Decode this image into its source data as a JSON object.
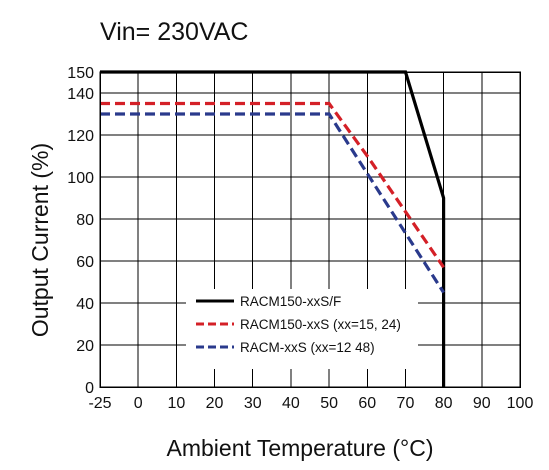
{
  "chart_data": {
    "type": "line",
    "title": "Vin= 230VAC",
    "xlabel": "Ambient Temperature (°C)",
    "ylabel": "Output Current (%)",
    "xlim": [
      -25,
      100
    ],
    "ylim": [
      0,
      150
    ],
    "x_ticks": [
      "-25",
      "0",
      "10",
      "20",
      "30",
      "40",
      "50",
      "60",
      "70",
      "80",
      "90",
      "100"
    ],
    "x_tick_values": [
      -25,
      0,
      10,
      20,
      30,
      40,
      50,
      60,
      70,
      80,
      90,
      100
    ],
    "y_ticks": [
      "0",
      "20",
      "40",
      "60",
      "80",
      "100",
      "120",
      "140",
      "150"
    ],
    "y_tick_values": [
      0,
      20,
      40,
      60,
      80,
      100,
      120,
      140,
      150
    ],
    "grid": true,
    "legend_position": "bottom-center",
    "series": [
      {
        "name": "RACM150-xxS/F",
        "color": "#000000",
        "dash": "solid",
        "x": [
          -25,
          70,
          80,
          80
        ],
        "y": [
          150,
          150,
          90,
          0
        ]
      },
      {
        "name": "RACM150-xxS (xx=15, 24)",
        "color": "#d42027",
        "dash": "dashed",
        "x": [
          -25,
          50,
          60,
          80
        ],
        "y": [
          135,
          135,
          110,
          57
        ]
      },
      {
        "name": "RACM-xxS (xx=12 48)",
        "color": "#2a3a8c",
        "dash": "dashed",
        "x": [
          -25,
          50,
          80
        ],
        "y": [
          130,
          130,
          45
        ]
      }
    ]
  }
}
